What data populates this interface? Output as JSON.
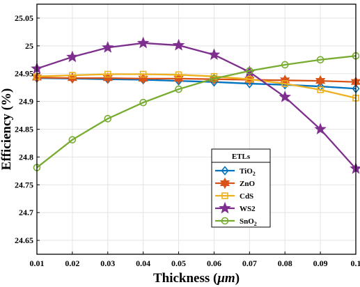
{
  "chart_data": {
    "type": "line",
    "xlabel": "Thickness (",
    "xlabel_unit": "μm",
    "xlabel_close": ")",
    "ylabel": "Efficiency (%)",
    "x": [
      0.01,
      0.02,
      0.03,
      0.04,
      0.05,
      0.06,
      0.07,
      0.08,
      0.09,
      0.1
    ],
    "x_tick_labels": [
      "0.01",
      "0.02",
      "0.03",
      "0.04",
      "0.05",
      "0.06",
      "0.07",
      "0.08",
      "0.09",
      "0.1"
    ],
    "xlim": [
      0.01,
      0.1
    ],
    "ylim": [
      24.625,
      25.075
    ],
    "y_ticks": [
      24.65,
      24.7,
      24.75,
      24.8,
      24.85,
      24.9,
      24.95,
      25.0,
      25.05
    ],
    "y_tick_labels": [
      "24.65",
      "24.7",
      "24.75",
      "24.8",
      "24.85",
      "24.9",
      "24.95",
      "25",
      "25.05"
    ],
    "grid": true,
    "legend": {
      "title": "ETLs",
      "placement": "lower-right-center"
    },
    "series": [
      {
        "name": "TiO",
        "sub": "2",
        "color": "#0072BD",
        "marker": "diamond",
        "values": [
          24.942,
          24.941,
          24.94,
          24.939,
          24.937,
          24.935,
          24.932,
          24.93,
          24.927,
          24.923
        ]
      },
      {
        "name": "ZnO",
        "sub": "",
        "color": "#D95319",
        "marker": "hexagram",
        "values": [
          24.943,
          24.942,
          24.942,
          24.941,
          24.941,
          24.94,
          24.939,
          24.938,
          24.937,
          24.935
        ]
      },
      {
        "name": "CdS",
        "sub": "",
        "color": "#EDB120",
        "marker": "square",
        "values": [
          24.945,
          24.947,
          24.949,
          24.949,
          24.948,
          24.945,
          24.94,
          24.932,
          24.921,
          24.906
        ]
      },
      {
        "name": "WS2",
        "sub": "",
        "color": "#7E2F8E",
        "marker": "star",
        "values": [
          24.959,
          24.98,
          24.997,
          25.005,
          25.001,
          24.984,
          24.953,
          24.908,
          24.85,
          24.779
        ]
      },
      {
        "name": "SnO",
        "sub": "2",
        "color": "#77AC30",
        "marker": "circle",
        "values": [
          24.781,
          24.831,
          24.869,
          24.898,
          24.922,
          24.941,
          24.955,
          24.966,
          24.975,
          24.982
        ]
      }
    ]
  }
}
